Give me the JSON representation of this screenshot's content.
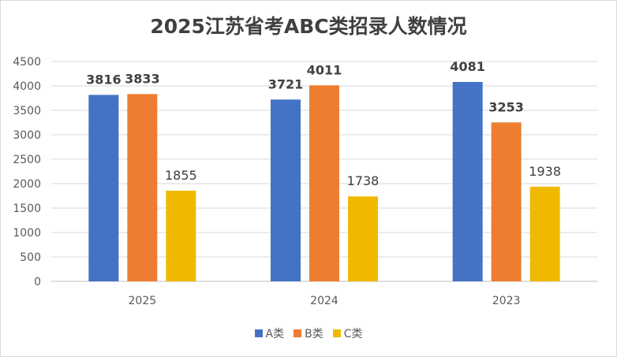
{
  "chart_data": {
    "type": "bar",
    "title": "2025江苏省考ABC类招录人数情况",
    "categories": [
      "2025",
      "2024",
      "2023"
    ],
    "series": [
      {
        "name": "A类",
        "values": [
          3816,
          3721,
          4081
        ],
        "color": "#4472C4"
      },
      {
        "name": "B类",
        "values": [
          3833,
          4011,
          3253
        ],
        "color": "#ED7D31"
      },
      {
        "name": "C类",
        "values": [
          1855,
          1738,
          1938
        ],
        "color": "#F0B900"
      }
    ],
    "bold_labels": [
      [
        true,
        true,
        true
      ],
      [
        true,
        true,
        true
      ],
      [
        false,
        false,
        false
      ]
    ],
    "ylim": [
      0,
      4500
    ],
    "yticks": [
      0,
      500,
      1000,
      1500,
      2000,
      2500,
      3000,
      3500,
      4000,
      4500
    ],
    "grid": true,
    "legend_position": "bottom"
  }
}
